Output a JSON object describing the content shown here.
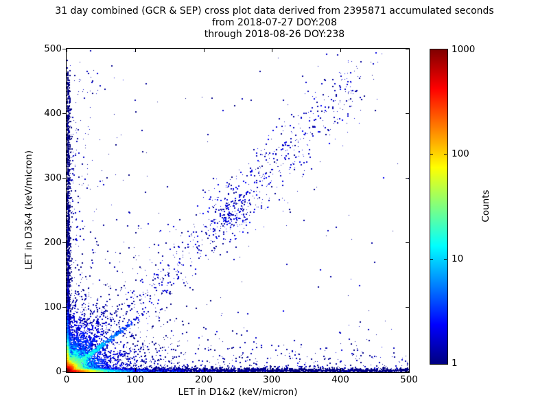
{
  "chart_data": {
    "type": "scatter-heatmap",
    "title": "31 day combined (GCR & SEP) cross plot data derived from 2395871 accumulated seconds",
    "subtitle1": "from 2018-07-27 DOY:208",
    "subtitle2": "through 2018-08-26 DOY:238",
    "accumulated_seconds": 2395871,
    "period": {
      "from": "2018-07-27",
      "from_doy": 208,
      "through": "2018-08-26",
      "through_doy": 238
    },
    "xlabel": "LET in D1&2 (keV/micron)",
    "ylabel": "LET in D3&4 (keV/micron)",
    "xlim": [
      0,
      500
    ],
    "ylim": [
      0,
      500
    ],
    "xticks": [
      0,
      100,
      200,
      300,
      400,
      500
    ],
    "yticks": [
      0,
      100,
      200,
      300,
      400,
      500
    ],
    "grid": false,
    "background_color": "#ffffff",
    "single_count_point_color": "#000080",
    "colorbar": {
      "label": "Counts",
      "scale": "log",
      "min": 1,
      "max": 1000,
      "ticks": [
        1,
        10,
        100,
        1000
      ],
      "colormap": "jet",
      "stops": [
        "#000080",
        "#0000ff",
        "#00ffff",
        "#ffff00",
        "#ff0000",
        "#800000"
      ],
      "stop_positions_pct": [
        0,
        12.5,
        37.5,
        62.5,
        87.5,
        100
      ]
    },
    "features": [
      "hot spot at origin: peak counts ~1000 (dark red core within ~5 keV/micron, orange/yellow to ~15, green/cyan halo to ~40)",
      "high-count streak along the x-axis (LET D3&4 ~ 0) spanning 0-500, counts fade red->yellow->cyan->dark blue by x~120",
      "high-count streak along the y-axis (LET D1&2 ~ 0) up to y~430, hot colors only below y~50",
      "bright cyan coincidence streak from origin with slope ~0.8 reaching ~(120, 95)",
      "fan of faint blue rays radiating from origin at several angles between the axes",
      "diffuse dark-blue diagonal band y ~ 1.06x from ~(90,95) to ~(430,455) with a denser clump near (242,247)",
      "sparse single-count (dark navy) background points over the full 0-500 range, denser at low LET, very sparse in upper right"
    ],
    "generation": {
      "seed": 1337,
      "components": [
        {
          "type": "uniform",
          "n": 60,
          "c0": 0.5
        },
        {
          "type": "power",
          "n": 260,
          "p": 2.3,
          "c0": 0.8
        },
        {
          "type": "blob",
          "n": 1500,
          "scale": 58,
          "c0": 2.5,
          "cd": 40
        },
        {
          "type": "wedge_left",
          "n": 300,
          "xscale": 22,
          "ymax": 480,
          "yp": 1.4,
          "c0": 0.8
        },
        {
          "type": "wedge_bottom",
          "n": 430,
          "yscale": 18,
          "xmax": 500,
          "xp": 1.3,
          "c0": 0.8
        },
        {
          "type": "xstreak",
          "n": 2900,
          "len": 500,
          "p": 2.0,
          "sigma": 2.2,
          "c0": 650,
          "cd": 16
        },
        {
          "type": "xstreak",
          "n": 900,
          "len": 500,
          "p": 1.6,
          "sigma": 3.4,
          "c0": 35,
          "cd": 55
        },
        {
          "type": "ystreak",
          "n": 1500,
          "len": 465,
          "p": 2.2,
          "sigma": 2.0,
          "c0": 450,
          "cd": 13
        },
        {
          "type": "ystreak",
          "n": 500,
          "len": 430,
          "p": 1.8,
          "sigma": 3.0,
          "c0": 20,
          "cd": 45
        },
        {
          "type": "blob",
          "n": 1100,
          "scale": 5.5,
          "c0": 900,
          "cd": 5.5
        },
        {
          "type": "blob",
          "n": 1700,
          "scale": 14,
          "c0": 110,
          "cd": 13
        },
        {
          "type": "blob",
          "n": 900,
          "scale": 38,
          "c0": 10,
          "cd": 33
        },
        {
          "type": "ray",
          "n": 550,
          "angle": 38.6,
          "rscale": 42,
          "rmax": 150,
          "sigma": 1.6,
          "c0": 28,
          "cd": 45
        },
        {
          "type": "ray",
          "n": 160,
          "angle": 8,
          "rscale": 45,
          "rmax": 140,
          "sigma": 2.0,
          "c0": 7,
          "cd": 40
        },
        {
          "type": "ray",
          "n": 140,
          "angle": 19,
          "rscale": 38,
          "rmax": 130,
          "sigma": 2.0,
          "c0": 7,
          "cd": 40
        },
        {
          "type": "ray",
          "n": 200,
          "angle": 52,
          "rscale": 40,
          "rmax": 135,
          "sigma": 2.0,
          "c0": 7,
          "cd": 40
        },
        {
          "type": "ray",
          "n": 180,
          "angle": 60,
          "rscale": 38,
          "rmax": 130,
          "sigma": 2.0,
          "c0": 7,
          "cd": 40
        },
        {
          "type": "ray",
          "n": 170,
          "angle": 68,
          "rscale": 36,
          "rmax": 125,
          "sigma": 2.0,
          "c0": 7,
          "cd": 40
        },
        {
          "type": "ray",
          "n": 160,
          "angle": 76,
          "rscale": 34,
          "rmax": 120,
          "sigma": 2.0,
          "c0": 7,
          "cd": 40
        },
        {
          "type": "ray",
          "n": 150,
          "angle": 84,
          "rscale": 40,
          "rmax": 130,
          "sigma": 2.0,
          "c0": 7,
          "cd": 40
        },
        {
          "type": "band",
          "n": 600,
          "x0": 85,
          "x1": 430,
          "slope": 1.06,
          "sigma": 26,
          "c0": 1.2
        },
        {
          "type": "band",
          "n": 80,
          "x0": 280,
          "x1": 470,
          "slope": 1.05,
          "sigma": 42,
          "c0": 0.8
        },
        {
          "type": "clump",
          "n": 190,
          "cx": 242,
          "cy": 247,
          "sigma": 21,
          "c0": 1.5
        }
      ]
    }
  }
}
